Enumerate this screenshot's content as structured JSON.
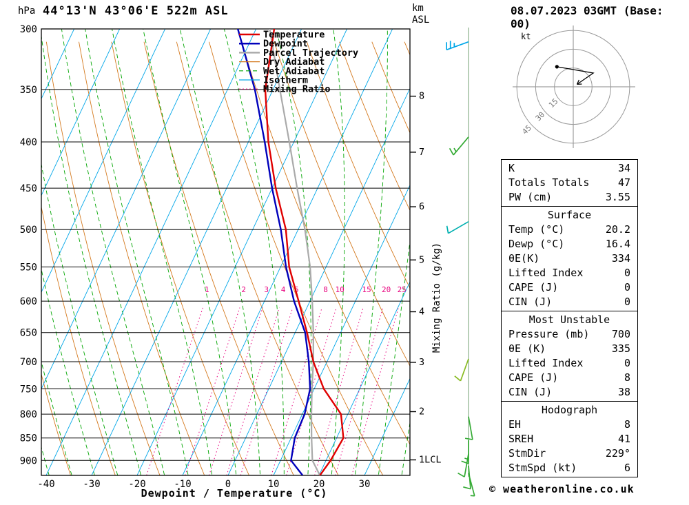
{
  "header": {
    "pressure_unit": "hPa",
    "title": "44°13'N 43°06'E 522m ASL",
    "km_label": "km",
    "asl_label": "ASL",
    "date_title": "08.07.2023 03GMT (Base: 00)"
  },
  "footer": {
    "xlabel": "Dewpoint / Temperature (°C)",
    "copyright": "© weatheronline.co.uk"
  },
  "colors": {
    "temperature": "#e00000",
    "dewpoint": "#0000bb",
    "parcel": "#aaaaaa",
    "dry_adiabat": "#d4791e",
    "wet_adiabat": "#00a500",
    "isotherm": "#00a6e8",
    "mixing_ratio": "#e8007e",
    "grid": "#000000",
    "wind_staff": "#9bbb9b"
  },
  "legend": [
    {
      "label": "Temperature",
      "color": "#e00000",
      "width": 2.5,
      "dash": ""
    },
    {
      "label": "Dewpoint",
      "color": "#0000bb",
      "width": 2.5,
      "dash": ""
    },
    {
      "label": "Parcel Trajectory",
      "color": "#aaaaaa",
      "width": 2.5,
      "dash": ""
    },
    {
      "label": "Dry Adiabat",
      "color": "#d4791e",
      "width": 1.2,
      "dash": ""
    },
    {
      "label": "Wet Adiabat",
      "color": "#00a500",
      "width": 1.2,
      "dash": "6 4"
    },
    {
      "label": "Isotherm",
      "color": "#00a6e8",
      "width": 1.2,
      "dash": ""
    },
    {
      "label": "Mixing Ratio",
      "color": "#e8007e",
      "width": 1.2,
      "dash": "2 3"
    }
  ],
  "axes": {
    "pressure_ticks": [
      300,
      350,
      400,
      450,
      500,
      550,
      600,
      650,
      700,
      750,
      800,
      850,
      900
    ],
    "temp_ticks": [
      -40,
      -30,
      -20,
      -10,
      0,
      10,
      20,
      30
    ],
    "km_ticks": [
      8,
      7,
      6,
      5,
      4,
      3,
      2
    ],
    "lcl_label": "1LCL",
    "mixing_axis_label": "Mixing Ratio (g/kg)",
    "mixing_ratio_values": [
      1,
      2,
      3,
      4,
      5,
      8,
      10,
      15,
      20,
      25
    ]
  },
  "hodograph": {
    "unit_label": "kt",
    "rings": [
      15,
      30,
      45
    ],
    "trace_uv_kt": [
      [
        -13,
        16
      ],
      [
        16,
        11
      ],
      [
        3,
        2
      ]
    ]
  },
  "tables": [
    {
      "header": null,
      "rows": [
        [
          "K",
          "34"
        ],
        [
          "Totals Totals",
          "47"
        ],
        [
          "PW (cm)",
          "3.55"
        ]
      ]
    },
    {
      "header": "Surface",
      "rows": [
        [
          "Temp (°C)",
          "20.2"
        ],
        [
          "Dewp (°C)",
          "16.4"
        ],
        [
          "θE(K)",
          "334"
        ],
        [
          "Lifted Index",
          "0"
        ],
        [
          "CAPE (J)",
          "0"
        ],
        [
          "CIN (J)",
          "0"
        ]
      ]
    },
    {
      "header": "Most Unstable",
      "rows": [
        [
          "Pressure (mb)",
          "700"
        ],
        [
          "θE (K)",
          "335"
        ],
        [
          "Lifted Index",
          "0"
        ],
        [
          "CAPE (J)",
          "8"
        ],
        [
          "CIN (J)",
          "38"
        ]
      ]
    },
    {
      "header": "Hodograph",
      "rows": [
        [
          "EH",
          "8"
        ],
        [
          "SREH",
          "41"
        ],
        [
          "StmDir",
          "229°"
        ],
        [
          "StmSpd (kt)",
          "6"
        ]
      ]
    }
  ],
  "chart_data": {
    "type": "line",
    "title": "Skew-T log-P sounding 44°13'N 43°06'E 522m ASL, 08.07.2023 03GMT (Base: 00)",
    "xlabel": "Dewpoint / Temperature (°C)",
    "ylabel": "Pressure (hPa)",
    "x_range": [
      -40,
      38
    ],
    "y_range_hPa": [
      935,
      300
    ],
    "y_scale": "log",
    "legend_position": "top-right",
    "pressure_hPa": [
      935,
      900,
      850,
      800,
      750,
      700,
      650,
      600,
      550,
      500,
      450,
      400,
      350,
      300
    ],
    "series": [
      {
        "name": "Temperature",
        "values_C": [
          20.2,
          21.0,
          21.5,
          18.5,
          12.1,
          7.0,
          2.6,
          -2.5,
          -8.1,
          -12.7,
          -19.2,
          -25.6,
          -31.7,
          -36.0
        ]
      },
      {
        "name": "Dewpoint",
        "values_C": [
          16.4,
          12.3,
          10.8,
          10.5,
          9.1,
          6.0,
          2.2,
          -3.5,
          -8.8,
          -13.8,
          -20.0,
          -26.4,
          -34.0,
          -44.0
        ]
      },
      {
        "name": "Parcel Trajectory",
        "values_C": [
          20.2,
          17.0,
          14.5,
          12.0,
          9.5,
          7.0,
          4.0,
          0.5,
          -3.5,
          -8.5,
          -14.5,
          -21.0,
          -28.5,
          -37.0
        ]
      }
    ],
    "wind_barbs": [
      {
        "pressure_hPa": 310,
        "speed_kt": 25,
        "dir_deg": 250,
        "color": "#00a6e8"
      },
      {
        "pressure_hPa": 395,
        "speed_kt": 15,
        "dir_deg": 220,
        "color": "#33aa33"
      },
      {
        "pressure_hPa": 490,
        "speed_kt": 10,
        "dir_deg": 240,
        "color": "#00b0b0"
      },
      {
        "pressure_hPa": 695,
        "speed_kt": 10,
        "dir_deg": 200,
        "color": "#88bb22"
      },
      {
        "pressure_hPa": 805,
        "speed_kt": 10,
        "dir_deg": 170,
        "color": "#33aa33"
      },
      {
        "pressure_hPa": 855,
        "speed_kt": 15,
        "dir_deg": 180,
        "color": "#33aa33"
      },
      {
        "pressure_hPa": 885,
        "speed_kt": 10,
        "dir_deg": 190,
        "color": "#33aa33"
      },
      {
        "pressure_hPa": 912,
        "speed_kt": 10,
        "dir_deg": 175,
        "color": "#33aa33"
      },
      {
        "pressure_hPa": 930,
        "speed_kt": 5,
        "dir_deg": 165,
        "color": "#33aa33"
      }
    ]
  }
}
